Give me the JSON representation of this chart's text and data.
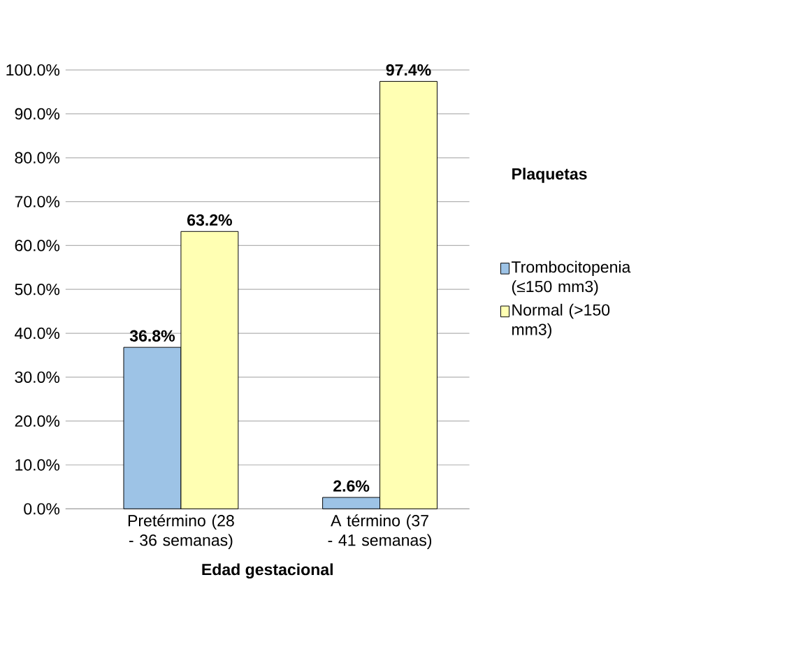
{
  "chart_data": {
    "type": "bar",
    "xlabel": "Edad gestacional",
    "legend_title": "Plaquetas",
    "categories": [
      "Pretérmino (28 - 36 semanas)",
      "A término (37 - 41 semanas)"
    ],
    "series": [
      {
        "name": "Trombocitopenia (≤150 mm3)",
        "color": "#9dc3e6",
        "values": [
          36.8,
          2.6
        ],
        "value_labels": [
          "36.8%",
          "2.6%"
        ]
      },
      {
        "name": "Normal (>150 mm3)",
        "color": "#ffffb3",
        "values": [
          63.2,
          97.4
        ],
        "value_labels": [
          "63.2%",
          "97.4%"
        ]
      }
    ],
    "ylim": [
      0,
      100
    ],
    "yticks": [
      {
        "value": 0,
        "label": "0.0%"
      },
      {
        "value": 10,
        "label": "10.0%"
      },
      {
        "value": 20,
        "label": "20.0%"
      },
      {
        "value": 30,
        "label": "30.0%"
      },
      {
        "value": 40,
        "label": "40.0%"
      },
      {
        "value": 50,
        "label": "50.0%"
      },
      {
        "value": 60,
        "label": "60.0%"
      },
      {
        "value": 70,
        "label": "70.0%"
      },
      {
        "value": 80,
        "label": "80.0%"
      },
      {
        "value": 90,
        "label": "90.0%"
      },
      {
        "value": 100,
        "label": "100.0%"
      }
    ],
    "grid": "y",
    "legend": "right"
  }
}
